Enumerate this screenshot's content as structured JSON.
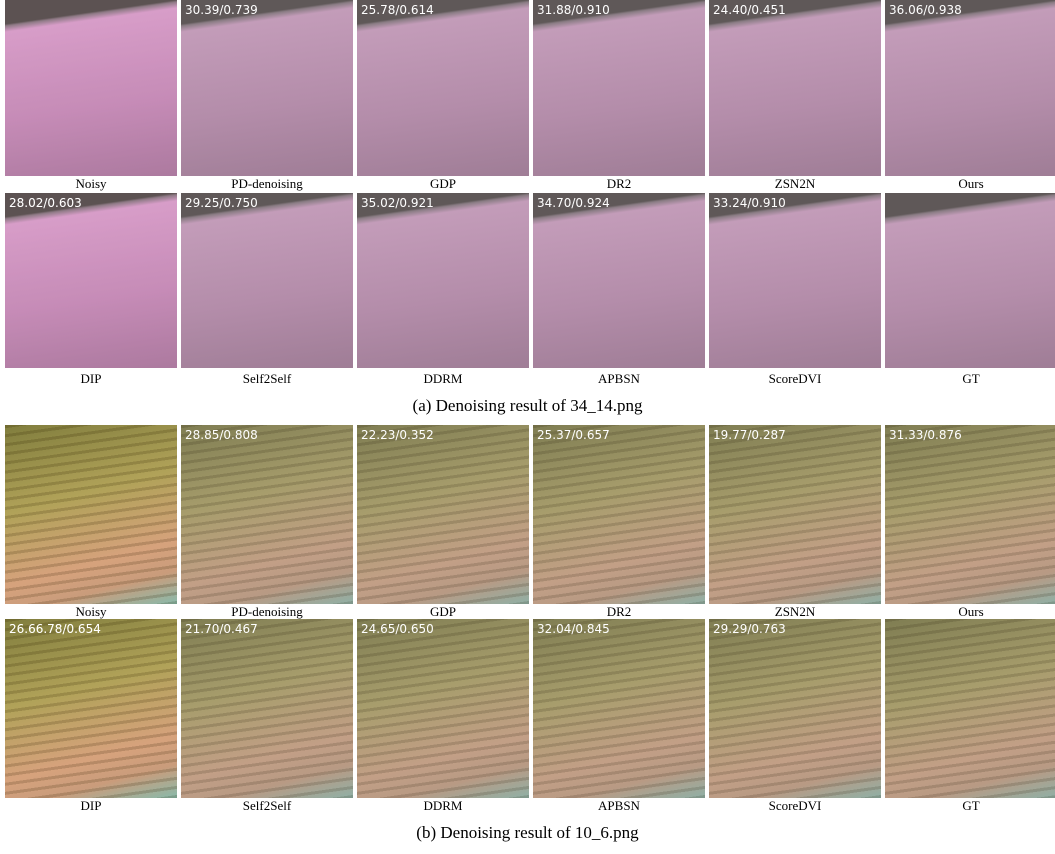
{
  "panels": [
    {
      "caption": "(a) Denoising result of 34_14.png",
      "rows": [
        {
          "tiles": [
            {
              "label": "Noisy"
            },
            {
              "label": "PD-denoising",
              "metric": "30.39/0.739"
            },
            {
              "label": "GDP",
              "metric": "25.78/0.614"
            },
            {
              "label": "DR2",
              "metric": "31.88/0.910"
            },
            {
              "label": "ZSN2N",
              "metric": "24.40/0.451"
            },
            {
              "label": "Ours",
              "metric": "36.06/0.938"
            }
          ]
        },
        {
          "tiles": [
            {
              "label": "DIP",
              "metric": "28.02/0.603"
            },
            {
              "label": "Self2Self",
              "metric": "29.25/0.750"
            },
            {
              "label": "DDRM",
              "metric": "35.02/0.921"
            },
            {
              "label": "APBSN",
              "metric": "34.70/0.924"
            },
            {
              "label": "ScoreDVI",
              "metric": "33.24/0.910"
            },
            {
              "label": "GT"
            }
          ]
        }
      ]
    },
    {
      "caption": "(b) Denoising result of 10_6.png",
      "rows": [
        {
          "tiles": [
            {
              "label": "Noisy"
            },
            {
              "label": "PD-denoising",
              "metric": "28.85/0.808"
            },
            {
              "label": "GDP",
              "metric": "22.23/0.352"
            },
            {
              "label": "DR2",
              "metric": "25.37/0.657"
            },
            {
              "label": "ZSN2N",
              "metric": "19.77/0.287"
            },
            {
              "label": "Ours",
              "metric": "31.33/0.876"
            }
          ]
        },
        {
          "tiles": [
            {
              "label": "DIP",
              "metric": "26.66.78/0.654"
            },
            {
              "label": "Self2Self",
              "metric": "21.70/0.467"
            },
            {
              "label": "DDRM",
              "metric": "24.65/0.650"
            },
            {
              "label": "APBSN",
              "metric": "32.04/0.845"
            },
            {
              "label": "ScoreDVI",
              "metric": "29.29/0.763"
            },
            {
              "label": "GT"
            }
          ]
        }
      ]
    }
  ]
}
